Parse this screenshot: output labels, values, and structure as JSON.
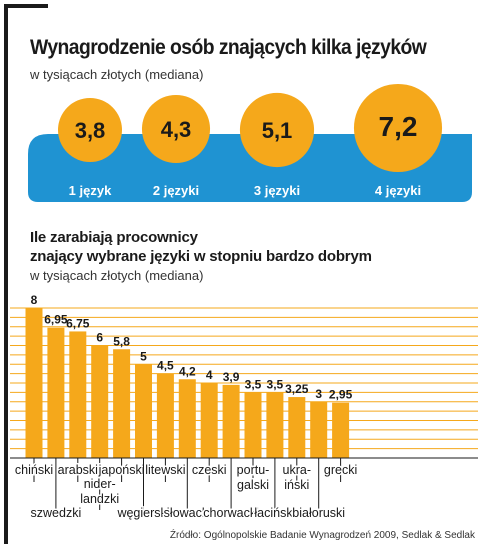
{
  "chart_data": [
    {
      "type": "bubble",
      "title": "Wynagrodzenie osób znających kilka języków",
      "subtitle": "w tysiącach złotych (mediana)",
      "categories": [
        "1 język",
        "2 języki",
        "3 języki",
        "4 języki"
      ],
      "values": [
        "3,8",
        "4,3",
        "5,1",
        "7,2"
      ],
      "numeric_values": [
        3.8,
        4.3,
        5.1,
        7.2
      ]
    },
    {
      "type": "bar",
      "title_line1": "Ile zarabiają procownicy",
      "title_line2": "znający wybrane języki w stopniu bardzo dobrym",
      "subtitle": "w tysiącach złotych (mediana)",
      "ylim": [
        0,
        8
      ],
      "grid": true,
      "categories": [
        [
          "chiński"
        ],
        [
          "szwedzki"
        ],
        [
          "arabski"
        ],
        [
          "nider-",
          "landzki"
        ],
        [
          "japoński"
        ],
        [
          "węgierski"
        ],
        [
          "litewski"
        ],
        [
          "słowacki"
        ],
        [
          "czeski"
        ],
        [
          "chorwacki"
        ],
        [
          "portu-",
          "galski"
        ],
        [
          "łaciński"
        ],
        [
          "ukra-",
          "iński"
        ],
        [
          "białoruski"
        ],
        [
          "grecki"
        ]
      ],
      "values": [
        8,
        6.95,
        6.75,
        6,
        5.8,
        5,
        4.5,
        4.2,
        4,
        3.9,
        3.5,
        3.5,
        3.25,
        3,
        2.95
      ],
      "value_labels": [
        "8",
        "6,95",
        "6,75",
        "6",
        "5,8",
        "5",
        "4,5",
        "4,2",
        "4",
        "3,9",
        "3,5",
        "3,5",
        "3,25",
        "3",
        "2,95"
      ]
    }
  ],
  "colors": {
    "bar": "#f5a81b",
    "band": "#1f93d2",
    "circle": "#f5a81b",
    "grid": "#f5a81b",
    "text": "#1a1a1a"
  },
  "source": "Źródło: Ogólnopolskie Badanie Wynagrodzeń 2009, Sedlak & Sedlak"
}
